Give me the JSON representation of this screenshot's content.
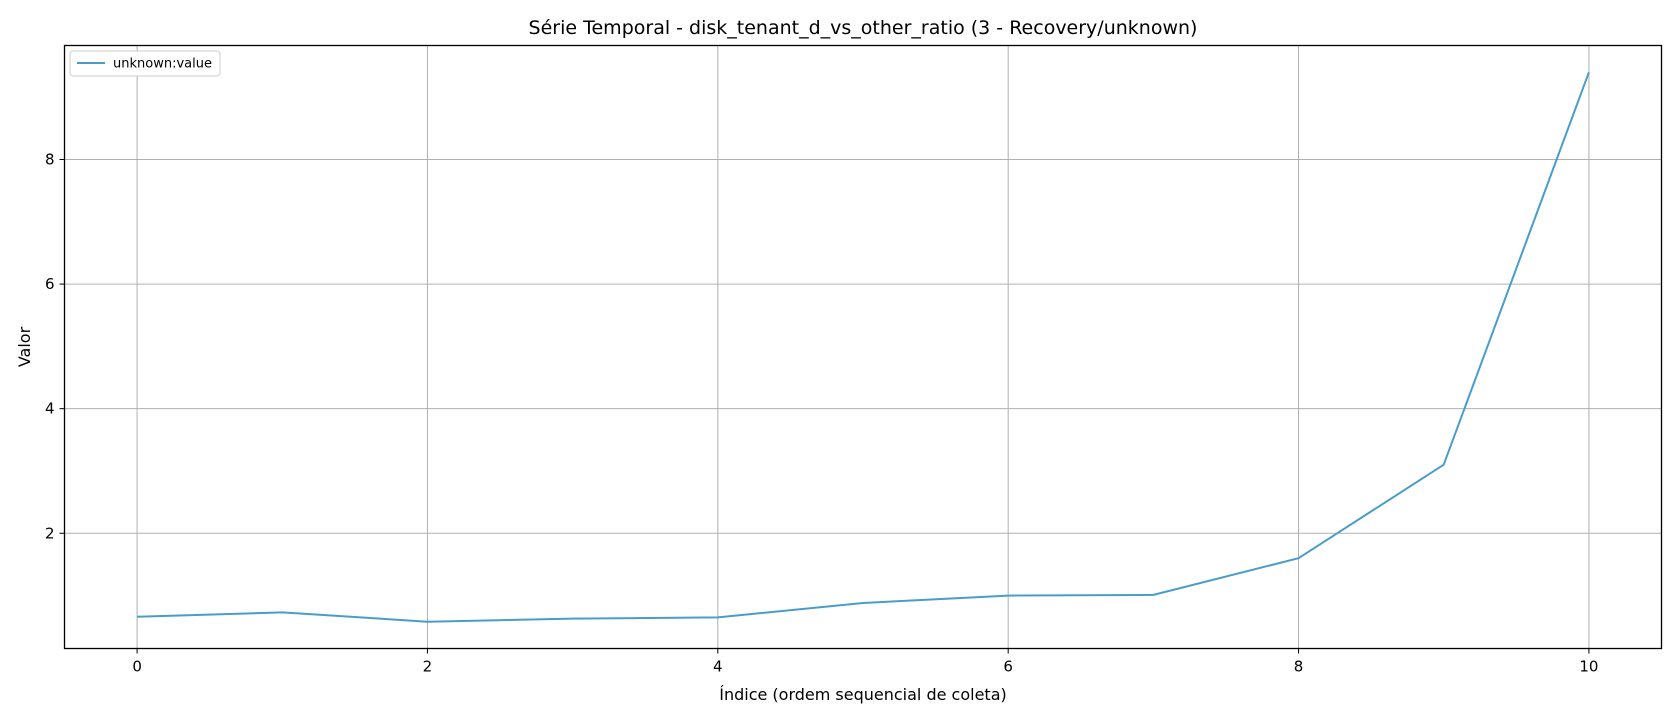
{
  "chart_data": {
    "type": "line",
    "title": "Série Temporal - disk_tenant_d_vs_other_ratio (3 - Recovery/unknown)",
    "xlabel": "Índice (ordem sequencial de coleta)",
    "ylabel": "Valor",
    "xlim": [
      -0.5,
      10.5
    ],
    "ylim": [
      0.15,
      9.83
    ],
    "x_ticks": [
      0,
      2,
      4,
      6,
      8,
      10
    ],
    "y_ticks": [
      2,
      4,
      6,
      8
    ],
    "grid": true,
    "legend_position": "top-left",
    "series": [
      {
        "name": "unknown:value",
        "color": "#4a9ccb",
        "x": [
          0,
          1,
          2,
          3,
          4,
          5,
          6,
          7,
          8,
          9,
          10
        ],
        "y": [
          0.66,
          0.73,
          0.58,
          0.63,
          0.65,
          0.88,
          1.0,
          1.01,
          1.6,
          3.1,
          9.4
        ]
      }
    ]
  }
}
